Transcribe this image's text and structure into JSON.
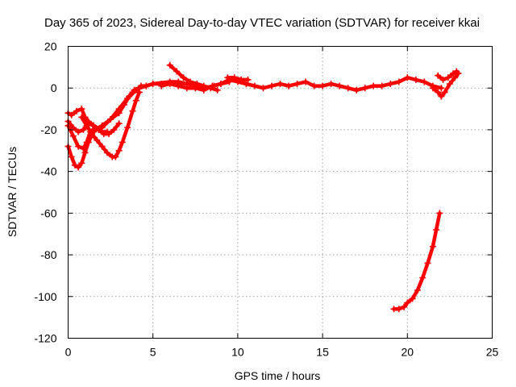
{
  "chart_data": {
    "type": "scatter",
    "title": "Day 365 of 2023, Sidereal Day-to-day VTEC variation (SDTVAR) for receiver kkai",
    "xlabel": "GPS time / hours",
    "ylabel": "SDTVAR / TECUs",
    "xlim": [
      0,
      25
    ],
    "ylim": [
      -120,
      20
    ],
    "xticks": [
      0,
      5,
      10,
      15,
      20,
      25
    ],
    "yticks": [
      -120,
      -100,
      -80,
      -60,
      -40,
      -20,
      0,
      20
    ],
    "xtick_labels": [
      "0",
      "5",
      "10",
      "15",
      "20",
      "25"
    ],
    "ytick_labels": [
      "-120",
      "-100",
      "-80",
      "-60",
      "-40",
      "-20",
      "0",
      "20"
    ],
    "grid": true,
    "legend": "none",
    "marker": "plus",
    "color": "#ff0000",
    "series": [
      {
        "x": [
          0.0,
          0.2,
          0.4,
          0.6,
          0.8,
          1.0,
          1.2,
          1.5,
          2.0,
          2.5,
          3.0,
          3.5,
          4.0,
          4.3,
          4.6,
          5.0,
          6.0,
          7.0,
          8.0,
          8.6,
          9.0,
          9.5
        ],
        "y": [
          -28,
          -33,
          -37,
          -38,
          -36,
          -31,
          -26,
          -21,
          -18,
          -15,
          -10,
          -5,
          -1,
          1,
          1,
          2,
          3,
          2,
          0,
          1,
          2,
          3
        ]
      },
      {
        "x": [
          0.0,
          0.3,
          0.6,
          0.9,
          1.1,
          1.3,
          1.6,
          2.0,
          2.5,
          3.0,
          3.3,
          3.6,
          3.9,
          4.2
        ],
        "y": [
          -18,
          -23,
          -28,
          -29,
          -26,
          -21,
          -19,
          -19,
          -15,
          -12,
          -8,
          -4,
          -1,
          0
        ]
      },
      {
        "x": [
          0.0,
          0.2,
          0.5,
          0.8,
          1.0,
          1.2,
          1.5,
          1.8,
          2.0,
          2.3
        ],
        "y": [
          -12,
          -13,
          -11,
          -10,
          -14,
          -16,
          -18,
          -20,
          -21,
          -21
        ]
      },
      {
        "x": [
          0.0,
          0.3,
          0.6,
          0.9,
          1.2,
          1.5,
          1.8,
          2.1,
          2.4,
          2.7,
          3.0
        ],
        "y": [
          -16,
          -19,
          -21,
          -20,
          -17,
          -18,
          -20,
          -22,
          -22,
          -20,
          -17
        ]
      },
      {
        "x": [
          0.8,
          1.1,
          1.4,
          1.7,
          2.0,
          2.3,
          2.6,
          2.8,
          3.0,
          3.2,
          3.5,
          3.8,
          4.0,
          4.2
        ],
        "y": [
          -14,
          -18,
          -22,
          -25,
          -28,
          -31,
          -33,
          -33,
          -30,
          -26,
          -19,
          -11,
          -6,
          -2
        ]
      },
      {
        "x": [
          3.8,
          4.2,
          4.6,
          5.0,
          5.5,
          6.0,
          6.5,
          7.0
        ],
        "y": [
          -2,
          0,
          1,
          2,
          2,
          3,
          3,
          2
        ]
      },
      {
        "x": [
          6.0,
          6.4,
          6.8,
          7.2,
          7.6,
          8.0,
          8.4,
          8.8
        ],
        "y": [
          11,
          8,
          5,
          3,
          2,
          1,
          0,
          -1
        ]
      },
      {
        "x": [
          5.5,
          6.0,
          6.5,
          7.0,
          7.5,
          8.0,
          8.5,
          9.0,
          9.5,
          10.0,
          10.5,
          11.0,
          11.5,
          12.0,
          12.5,
          13.0,
          13.5,
          14.0,
          14.5,
          15.0,
          15.5,
          16.0,
          16.5,
          17.0,
          17.5,
          18.0,
          18.5,
          19.0,
          19.5,
          20.0,
          20.5,
          21.0,
          21.5,
          22.0
        ],
        "y": [
          1,
          2,
          1,
          0,
          0,
          -1,
          1,
          2,
          4,
          3,
          2,
          1,
          0,
          1,
          2,
          1,
          2,
          3,
          1,
          1,
          2,
          1,
          0,
          -1,
          0,
          1,
          1,
          2,
          3,
          5,
          4,
          3,
          1,
          0
        ]
      },
      {
        "x": [
          9.4,
          9.8,
          10.2,
          10.6
        ],
        "y": [
          5,
          5,
          4,
          4
        ]
      },
      {
        "x": [
          21.5,
          21.8,
          22.0,
          22.2,
          22.5,
          22.8,
          23.0
        ],
        "y": [
          0,
          -2,
          -4,
          -2,
          2,
          5,
          7
        ]
      },
      {
        "x": [
          21.8,
          22.1,
          22.4,
          22.7,
          22.9
        ],
        "y": [
          6,
          4,
          5,
          7,
          8
        ]
      },
      {
        "x": [
          19.2,
          19.5,
          19.8,
          20.0,
          20.3,
          20.6,
          20.9,
          21.2,
          21.5,
          21.7,
          21.9
        ],
        "y": [
          -106,
          -106,
          -105,
          -103,
          -101,
          -97,
          -91,
          -84,
          -76,
          -68,
          -60
        ]
      }
    ]
  }
}
